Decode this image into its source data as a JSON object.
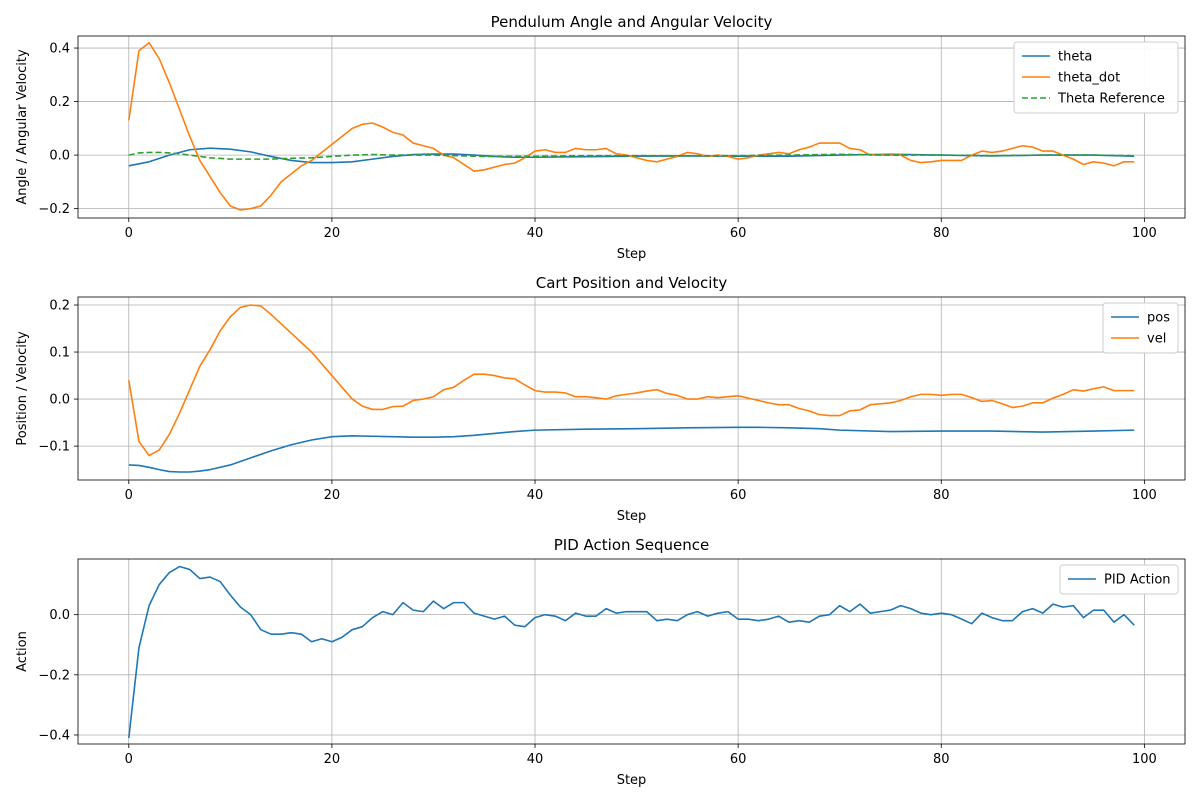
{
  "chart_data": [
    {
      "type": "line",
      "title": "Pendulum Angle and Angular Velocity",
      "xlabel": "Step",
      "ylabel": "Angle / Angular Velocity",
      "xlim": [
        -5,
        104
      ],
      "ylim": [
        -0.235,
        0.445
      ],
      "xticks": [
        0,
        20,
        40,
        60,
        80,
        100
      ],
      "yticks": [
        -0.2,
        0.0,
        0.2,
        0.4
      ],
      "ytick_labels": [
        "−0.2",
        "0.0",
        "0.2",
        "0.4"
      ],
      "grid": true,
      "legend": "top-right",
      "series": [
        {
          "name": "theta",
          "color": "#1f77b4",
          "dash": "",
          "x": [
            0,
            2,
            4,
            6,
            8,
            10,
            12,
            14,
            16,
            18,
            20,
            22,
            24,
            26,
            28,
            30,
            32,
            34,
            36,
            38,
            40,
            45,
            50,
            55,
            60,
            65,
            70,
            75,
            80,
            85,
            90,
            95,
            99
          ],
          "y": [
            -0.04,
            -0.025,
            0.0,
            0.02,
            0.026,
            0.022,
            0.012,
            -0.005,
            -0.02,
            -0.028,
            -0.028,
            -0.025,
            -0.015,
            -0.005,
            0.002,
            0.004,
            0.004,
            0.0,
            -0.005,
            -0.008,
            -0.008,
            -0.006,
            -0.004,
            -0.003,
            -0.004,
            -0.004,
            0.0,
            0.003,
            0.0,
            -0.003,
            0.0,
            0.0,
            -0.004
          ]
        },
        {
          "name": "theta_dot",
          "color": "#ff7f0e",
          "dash": "",
          "x": [
            0,
            1,
            2,
            3,
            4,
            5,
            6,
            7,
            8,
            9,
            10,
            11,
            12,
            13,
            14,
            15,
            16,
            17,
            18,
            19,
            20,
            21,
            22,
            23,
            24,
            25,
            26,
            27,
            28,
            29,
            30,
            31,
            32,
            33,
            34,
            35,
            36,
            37,
            38,
            39,
            40,
            41,
            42,
            43,
            44,
            45,
            46,
            47,
            48,
            49,
            50,
            51,
            52,
            53,
            54,
            55,
            56,
            57,
            58,
            59,
            60,
            61,
            62,
            63,
            64,
            65,
            66,
            67,
            68,
            69,
            70,
            71,
            72,
            73,
            74,
            75,
            76,
            77,
            78,
            79,
            80,
            81,
            82,
            83,
            84,
            85,
            86,
            87,
            88,
            89,
            90,
            91,
            92,
            93,
            94,
            95,
            96,
            97,
            98,
            99
          ],
          "y": [
            0.13,
            0.39,
            0.42,
            0.36,
            0.27,
            0.17,
            0.07,
            -0.02,
            -0.08,
            -0.14,
            -0.19,
            -0.205,
            -0.2,
            -0.19,
            -0.15,
            -0.1,
            -0.07,
            -0.04,
            -0.02,
            0.01,
            0.04,
            0.07,
            0.1,
            0.115,
            0.12,
            0.105,
            0.085,
            0.075,
            0.045,
            0.035,
            0.025,
            0.0,
            -0.01,
            -0.035,
            -0.06,
            -0.055,
            -0.045,
            -0.035,
            -0.03,
            -0.01,
            0.015,
            0.02,
            0.01,
            0.01,
            0.025,
            0.02,
            0.02,
            0.025,
            0.005,
            0.0,
            -0.01,
            -0.02,
            -0.025,
            -0.015,
            -0.005,
            0.01,
            0.005,
            -0.005,
            0.0,
            -0.005,
            -0.015,
            -0.01,
            0.0,
            0.005,
            0.01,
            0.005,
            0.02,
            0.03,
            0.045,
            0.045,
            0.045,
            0.025,
            0.02,
            0.0,
            0.0,
            0.0,
            0.0,
            -0.02,
            -0.028,
            -0.025,
            -0.02,
            -0.02,
            -0.02,
            0.0,
            0.015,
            0.01,
            0.015,
            0.025,
            0.035,
            0.03,
            0.015,
            0.015,
            0.0,
            -0.015,
            -0.035,
            -0.025,
            -0.03,
            -0.04,
            -0.025,
            -0.025
          ]
        },
        {
          "name": "Theta Reference",
          "color": "#2ca02c",
          "dash": "6,3",
          "x": [
            0,
            1,
            2,
            3,
            4,
            5,
            6,
            8,
            10,
            12,
            14,
            16,
            18,
            20,
            22,
            24,
            26,
            28,
            30,
            35,
            40,
            45,
            50,
            55,
            60,
            65,
            70,
            75,
            80,
            85,
            90,
            95,
            99
          ],
          "y": [
            0.0,
            0.008,
            0.01,
            0.01,
            0.008,
            0.005,
            0.0,
            -0.01,
            -0.015,
            -0.015,
            -0.015,
            -0.012,
            -0.01,
            -0.005,
            0.0,
            0.002,
            0.0,
            0.0,
            0.0,
            -0.005,
            -0.005,
            -0.002,
            -0.002,
            -0.003,
            -0.002,
            0.0,
            0.003,
            0.0,
            0.0,
            -0.002,
            0.0,
            0.0,
            -0.002
          ]
        }
      ]
    },
    {
      "type": "line",
      "title": "Cart Position and Velocity",
      "xlabel": "Step",
      "ylabel": "Position / Velocity",
      "xlim": [
        -5,
        104
      ],
      "ylim": [
        -0.172,
        0.217
      ],
      "xticks": [
        0,
        20,
        40,
        60,
        80,
        100
      ],
      "yticks": [
        -0.1,
        0.0,
        0.1,
        0.2
      ],
      "ytick_labels": [
        "−0.1",
        "0.0",
        "0.1",
        "0.2"
      ],
      "grid": true,
      "legend": "top-right",
      "series": [
        {
          "name": "pos",
          "color": "#1f77b4",
          "dash": "",
          "x": [
            0,
            1,
            2,
            3,
            4,
            5,
            6,
            7,
            8,
            10,
            12,
            14,
            16,
            18,
            20,
            22,
            24,
            26,
            28,
            30,
            32,
            34,
            36,
            38,
            40,
            45,
            50,
            55,
            60,
            62,
            65,
            68,
            70,
            75,
            80,
            82,
            85,
            90,
            95,
            99
          ],
          "y": [
            -0.14,
            -0.141,
            -0.145,
            -0.15,
            -0.154,
            -0.155,
            -0.155,
            -0.153,
            -0.15,
            -0.14,
            -0.125,
            -0.11,
            -0.097,
            -0.087,
            -0.08,
            -0.078,
            -0.079,
            -0.08,
            -0.081,
            -0.081,
            -0.08,
            -0.077,
            -0.073,
            -0.069,
            -0.066,
            -0.064,
            -0.063,
            -0.061,
            -0.06,
            -0.06,
            -0.061,
            -0.063,
            -0.066,
            -0.069,
            -0.068,
            -0.068,
            -0.068,
            -0.07,
            -0.068,
            -0.066
          ]
        },
        {
          "name": "vel",
          "color": "#ff7f0e",
          "dash": "",
          "x": [
            0,
            1,
            2,
            3,
            4,
            5,
            6,
            7,
            8,
            9,
            10,
            11,
            12,
            13,
            14,
            15,
            16,
            17,
            18,
            19,
            20,
            21,
            22,
            23,
            24,
            25,
            26,
            27,
            28,
            29,
            30,
            31,
            32,
            33,
            34,
            35,
            36,
            37,
            38,
            39,
            40,
            41,
            42,
            43,
            44,
            45,
            46,
            47,
            48,
            49,
            50,
            51,
            52,
            53,
            54,
            55,
            56,
            57,
            58,
            59,
            60,
            61,
            62,
            63,
            64,
            65,
            66,
            67,
            68,
            69,
            70,
            71,
            72,
            73,
            74,
            75,
            76,
            77,
            78,
            79,
            80,
            81,
            82,
            83,
            84,
            85,
            86,
            87,
            88,
            89,
            90,
            91,
            92,
            93,
            94,
            95,
            96,
            97,
            98,
            99
          ],
          "y": [
            0.04,
            -0.09,
            -0.12,
            -0.108,
            -0.075,
            -0.03,
            0.02,
            0.07,
            0.105,
            0.145,
            0.175,
            0.195,
            0.2,
            0.198,
            0.18,
            0.16,
            0.14,
            0.12,
            0.1,
            0.075,
            0.05,
            0.025,
            0.0,
            -0.015,
            -0.022,
            -0.022,
            -0.016,
            -0.015,
            -0.003,
            0.0,
            0.005,
            0.02,
            0.025,
            0.04,
            0.053,
            0.053,
            0.05,
            0.045,
            0.043,
            0.03,
            0.018,
            0.015,
            0.015,
            0.013,
            0.005,
            0.005,
            0.003,
            0.0,
            0.007,
            0.01,
            0.013,
            0.017,
            0.02,
            0.012,
            0.008,
            0.0,
            0.0,
            0.005,
            0.003,
            0.005,
            0.007,
            0.002,
            -0.003,
            -0.008,
            -0.012,
            -0.012,
            -0.02,
            -0.025,
            -0.033,
            -0.035,
            -0.035,
            -0.025,
            -0.023,
            -0.012,
            -0.01,
            -0.008,
            -0.003,
            0.005,
            0.01,
            0.01,
            0.008,
            0.01,
            0.01,
            0.003,
            -0.005,
            -0.003,
            -0.01,
            -0.018,
            -0.015,
            -0.008,
            -0.008,
            0.002,
            0.01,
            0.02,
            0.017,
            0.022,
            0.026,
            0.018,
            0.018,
            0.018
          ]
        }
      ]
    },
    {
      "type": "line",
      "title": "PID Action Sequence",
      "xlabel": "Step",
      "ylabel": "Action",
      "xlim": [
        -5,
        104
      ],
      "ylim": [
        -0.43,
        0.185
      ],
      "xticks": [
        0,
        20,
        40,
        60,
        80,
        100
      ],
      "yticks": [
        -0.4,
        -0.2,
        0.0
      ],
      "ytick_labels": [
        "−0.4",
        "−0.2",
        "0.0"
      ],
      "grid": true,
      "legend": "top-right",
      "series": [
        {
          "name": "PID Action",
          "color": "#1f77b4",
          "dash": "",
          "x": [
            0,
            1,
            2,
            3,
            4,
            5,
            6,
            7,
            8,
            9,
            10,
            11,
            12,
            13,
            14,
            15,
            16,
            17,
            18,
            19,
            20,
            21,
            22,
            23,
            24,
            25,
            26,
            27,
            28,
            29,
            30,
            31,
            32,
            33,
            34,
            35,
            36,
            37,
            38,
            39,
            40,
            41,
            42,
            43,
            44,
            45,
            46,
            47,
            48,
            49,
            50,
            51,
            52,
            53,
            54,
            55,
            56,
            57,
            58,
            59,
            60,
            61,
            62,
            63,
            64,
            65,
            66,
            67,
            68,
            69,
            70,
            71,
            72,
            73,
            74,
            75,
            76,
            77,
            78,
            79,
            80,
            81,
            82,
            83,
            84,
            85,
            86,
            87,
            88,
            89,
            90,
            91,
            92,
            93,
            94,
            95,
            96,
            97,
            98,
            99
          ],
          "y": [
            -0.41,
            -0.11,
            0.03,
            0.1,
            0.14,
            0.16,
            0.15,
            0.12,
            0.125,
            0.11,
            0.065,
            0.025,
            0.0,
            -0.05,
            -0.065,
            -0.065,
            -0.06,
            -0.065,
            -0.09,
            -0.08,
            -0.09,
            -0.075,
            -0.05,
            -0.04,
            -0.01,
            0.01,
            0.0,
            0.04,
            0.015,
            0.01,
            0.045,
            0.02,
            0.04,
            0.04,
            0.005,
            -0.005,
            -0.015,
            -0.005,
            -0.035,
            -0.04,
            -0.01,
            0.0,
            -0.005,
            -0.02,
            0.005,
            -0.005,
            -0.005,
            0.02,
            0.005,
            0.01,
            0.01,
            0.01,
            -0.02,
            -0.015,
            -0.02,
            0.0,
            0.01,
            -0.005,
            0.005,
            0.01,
            -0.015,
            -0.015,
            -0.02,
            -0.015,
            -0.005,
            -0.025,
            -0.02,
            -0.025,
            -0.005,
            0.0,
            0.03,
            0.01,
            0.035,
            0.005,
            0.01,
            0.015,
            0.03,
            0.02,
            0.005,
            0.0,
            0.005,
            0.0,
            -0.015,
            -0.03,
            0.005,
            -0.01,
            -0.02,
            -0.02,
            0.01,
            0.02,
            0.005,
            0.035,
            0.025,
            0.03,
            -0.01,
            0.015,
            0.015,
            -0.025,
            0.0,
            -0.035
          ]
        }
      ]
    }
  ]
}
